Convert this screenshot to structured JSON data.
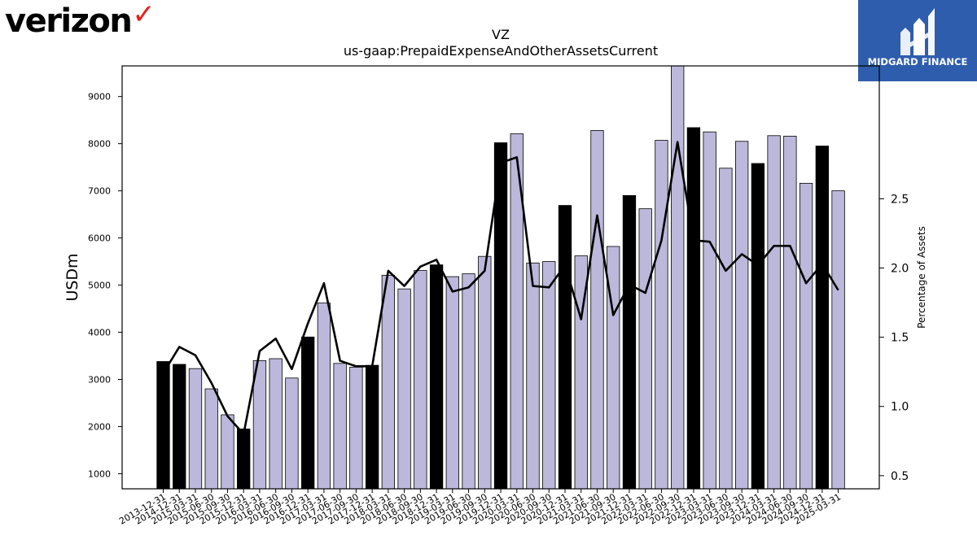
{
  "branding": {
    "left_logo_text": "verizon",
    "left_logo_mark": "✓",
    "right_logo_text": "MIDGARD FINANCE",
    "right_logo_icon": "midgard-mountain-icon",
    "right_logo_bg": "#2f5dad",
    "accent_red": "#e2231a"
  },
  "chart_data": {
    "type": "bar",
    "title": "VZ",
    "subtitle": "us-gaap:PrepaidExpenseAndOtherAssetsCurrent",
    "ylabel": "USDm",
    "y2label": "Percentage of Assets",
    "ylim": [
      680,
      9650
    ],
    "y2lim": [
      0.405,
      3.46
    ],
    "yticks": [
      1000,
      2000,
      3000,
      4000,
      5000,
      6000,
      7000,
      8000,
      9000
    ],
    "y2ticks": [
      0.5,
      1.0,
      1.5,
      2.0,
      2.5
    ],
    "colors": {
      "bar": "#bcb8db",
      "bar_highlight": "#000000",
      "line": "#000000"
    },
    "categories": [
      "2013-12-31",
      "2014-12-31",
      "2015-03-31",
      "2015-06-30",
      "2015-09-30",
      "2015-12-31",
      "2016-03-31",
      "2016-06-30",
      "2016-09-30",
      "2016-12-31",
      "2017-03-31",
      "2017-06-30",
      "2017-09-30",
      "2017-12-31",
      "2018-03-31",
      "2018-06-30",
      "2018-09-30",
      "2018-12-31",
      "2019-03-31",
      "2019-06-30",
      "2019-09-30",
      "2019-12-31",
      "2020-03-31",
      "2020-06-30",
      "2020-09-30",
      "2020-12-31",
      "2021-03-31",
      "2021-06-30",
      "2021-09-30",
      "2021-12-31",
      "2022-03-31",
      "2022-06-30",
      "2022-09-30",
      "2022-12-31",
      "2023-03-31",
      "2023-06-30",
      "2023-09-30",
      "2023-12-31",
      "2024-03-31",
      "2024-06-30",
      "2024-09-30",
      "2024-12-31",
      "2025-03-31"
    ],
    "series": [
      {
        "type": "bar",
        "values": [
          3380,
          3320,
          3230,
          2800,
          2250,
          1950,
          3400,
          3440,
          3030,
          3900,
          4620,
          3340,
          3260,
          3300,
          5210,
          4920,
          5310,
          5430,
          5180,
          5240,
          5610,
          8020,
          8210,
          5470,
          5500,
          6690,
          5620,
          8280,
          5820,
          6900,
          6620,
          8070,
          9700,
          8340,
          8250,
          7480,
          8050,
          7580,
          8170,
          8160,
          7160,
          7950,
          7000
        ],
        "highlight": [
          true,
          true,
          false,
          false,
          false,
          true,
          false,
          false,
          false,
          true,
          false,
          false,
          false,
          true,
          false,
          false,
          false,
          true,
          false,
          false,
          false,
          true,
          false,
          false,
          false,
          true,
          false,
          false,
          false,
          true,
          false,
          false,
          false,
          true,
          false,
          false,
          false,
          true,
          false,
          false,
          false,
          true,
          false
        ]
      },
      {
        "type": "line",
        "axis": "right",
        "values": [
          1.24,
          1.43,
          1.37,
          1.17,
          0.93,
          0.8,
          1.4,
          1.49,
          1.27,
          1.6,
          1.89,
          1.33,
          1.29,
          1.29,
          1.98,
          1.87,
          2.01,
          2.06,
          1.83,
          1.86,
          1.98,
          2.76,
          2.8,
          1.87,
          1.86,
          2.02,
          1.63,
          2.38,
          1.66,
          1.88,
          1.82,
          2.2,
          2.91,
          2.2,
          2.19,
          1.98,
          2.1,
          2.02,
          2.16,
          2.16,
          1.89,
          2.03,
          1.84
        ]
      }
    ],
    "legend": "none",
    "grid": false
  }
}
